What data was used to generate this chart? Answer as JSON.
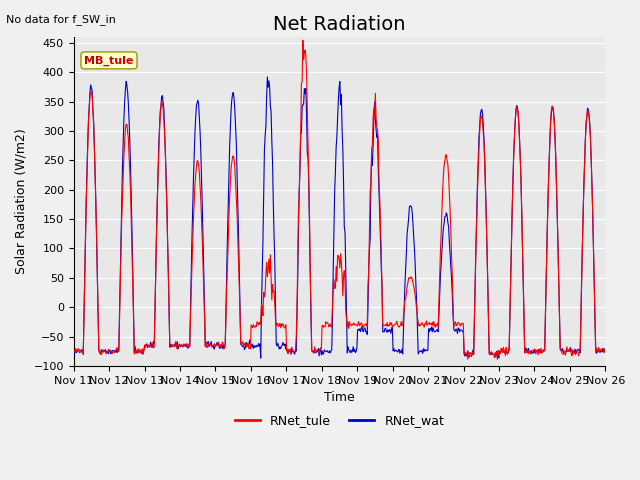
{
  "title": "Net Radiation",
  "subtitle": "No data for f_SW_in",
  "ylabel": "Solar Radiation (W/m2)",
  "xlabel": "Time",
  "ylim": [
    -100,
    460
  ],
  "yticks": [
    -100,
    -50,
    0,
    50,
    100,
    150,
    200,
    250,
    300,
    350,
    400,
    450
  ],
  "xtick_labels": [
    "Nov 11",
    "Nov 12",
    "Nov 13",
    "Nov 14",
    "Nov 15",
    "Nov 16",
    "Nov 17",
    "Nov 18",
    "Nov 19",
    "Nov 20",
    "Nov 21",
    "Nov 22",
    "Nov 23",
    "Nov 24",
    "Nov 25",
    "Nov 26"
  ],
  "color_tule": "#ff0000",
  "color_wat": "#0000cc",
  "legend_label_tule": "RNet_tule",
  "legend_label_wat": "RNet_wat",
  "site_label": "MB_tule",
  "bg_color": "#e8e8e8",
  "grid_color": "#ffffff",
  "title_fontsize": 14,
  "label_fontsize": 9,
  "tick_fontsize": 8,
  "peaks_tule": [
    370.0,
    310.0,
    350.0,
    247.0,
    258.0,
    58.0,
    430.0,
    90.0,
    347.0,
    50.0,
    260.0,
    325.0,
    343.0,
    342.0,
    337.0
  ],
  "peaks_wat": [
    375.0,
    380.0,
    362.0,
    352.0,
    367.0,
    385.0,
    375.0,
    370.0,
    320.0,
    175.0,
    160.0,
    338.0,
    343.0,
    342.0,
    337.0
  ],
  "nights_tule": [
    -75.0,
    -75.0,
    -65.0,
    -65.0,
    -65.0,
    -30.0,
    -75.0,
    -30.0,
    -30.0,
    -30.0,
    -30.0,
    -80.0,
    -75.0,
    -75.0,
    -75.0
  ],
  "nights_wat": [
    -75.0,
    -75.0,
    -65.0,
    -65.0,
    -65.0,
    -65.0,
    -75.0,
    -75.0,
    -40.0,
    -75.0,
    -40.0,
    -80.0,
    -75.0,
    -75.0,
    -75.0
  ]
}
